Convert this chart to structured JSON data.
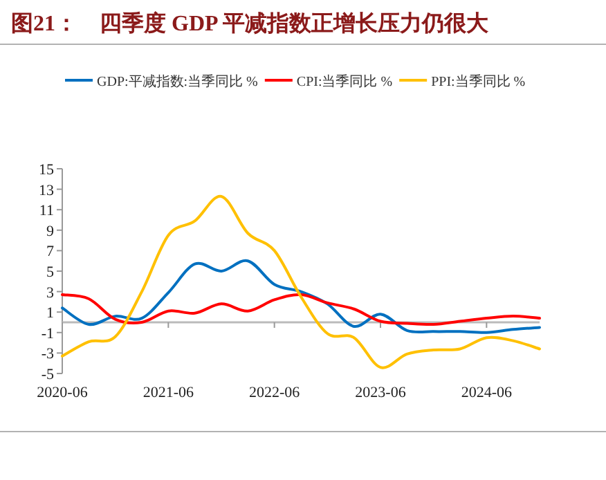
{
  "chart_data": {
    "type": "line",
    "title": "图21：　四季度 GDP 平减指数正增长压力仍很大",
    "x": [
      "2020-06",
      "2020-09",
      "2020-12",
      "2021-03",
      "2021-06",
      "2021-09",
      "2021-12",
      "2022-03",
      "2022-06",
      "2022-09",
      "2022-12",
      "2023-03",
      "2023-06",
      "2023-09",
      "2023-12",
      "2024-03",
      "2024-06",
      "2024-09",
      "2024-12"
    ],
    "series": [
      {
        "name": "GDP:平减指数:当季同比 %",
        "color": "#0070c0",
        "values": [
          1.4,
          -0.2,
          0.6,
          0.4,
          2.9,
          5.7,
          5.0,
          6.0,
          3.7,
          3.0,
          1.8,
          -0.4,
          0.8,
          -0.8,
          -0.9,
          -0.9,
          -1.0,
          -0.7,
          -0.5
        ]
      },
      {
        "name": "CPI:当季同比 %",
        "color": "#ff0000",
        "values": [
          2.7,
          2.3,
          0.3,
          0.0,
          1.1,
          0.9,
          1.8,
          1.1,
          2.2,
          2.7,
          1.9,
          1.3,
          0.1,
          -0.1,
          -0.2,
          0.1,
          0.4,
          0.6,
          0.4
        ]
      },
      {
        "name": "PPI:当季同比 %",
        "color": "#ffc000",
        "values": [
          -3.3,
          -1.9,
          -1.4,
          3.0,
          8.5,
          9.9,
          12.3,
          8.7,
          7.0,
          2.5,
          -1.1,
          -1.5,
          -4.4,
          -3.1,
          -2.7,
          -2.6,
          -1.5,
          -1.8,
          -2.6
        ]
      }
    ],
    "xlim": [
      "2020-06",
      "2024-12"
    ],
    "xticks": [
      "2020-06",
      "2021-06",
      "2022-06",
      "2023-06",
      "2024-06"
    ],
    "ylim": [
      -5,
      15
    ],
    "yticks": [
      -5,
      -3,
      -1,
      1,
      3,
      5,
      7,
      9,
      11,
      13,
      15
    ],
    "grid": false,
    "legend": "top",
    "marker": "none",
    "line_style": "solid"
  }
}
